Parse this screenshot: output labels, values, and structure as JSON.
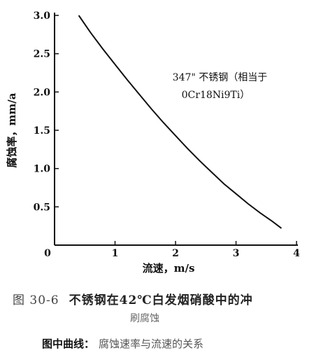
{
  "chart_data": {
    "type": "line",
    "title": "",
    "xlabel": "流速，m/s",
    "ylabel": "腐蚀率，mm/a",
    "xlim": [
      0,
      4
    ],
    "ylim": [
      0,
      3.0
    ],
    "x_ticks": [
      "0",
      "1",
      "2",
      "3",
      "4"
    ],
    "y_ticks": [
      "0",
      "0.5",
      "1.0",
      "1.5",
      "2.0",
      "2.5",
      "3.0"
    ],
    "grid": false,
    "series": [
      {
        "name": "347\" 不锈钢（相当于 0Cr18Ni9Ti）",
        "x": [
          0.4,
          0.6,
          0.8,
          1.0,
          1.2,
          1.4,
          1.6,
          1.8,
          2.0,
          2.2,
          2.4,
          2.6,
          2.8,
          3.0,
          3.2,
          3.4,
          3.6,
          3.75
        ],
        "y": [
          3.0,
          2.77,
          2.56,
          2.36,
          2.16,
          1.97,
          1.78,
          1.6,
          1.43,
          1.26,
          1.1,
          0.95,
          0.8,
          0.67,
          0.54,
          0.42,
          0.31,
          0.22
        ]
      }
    ],
    "annotation_line1": "347\" 不锈钢（相当于",
    "annotation_line2": "0Cr18Ni9Ti）"
  },
  "caption": {
    "figure_number": "图 30-6",
    "title_line1": "不锈钢在42℃白发烟硝酸中的冲",
    "title_line2": "刷腐蚀"
  },
  "note": {
    "label": "图中曲线：",
    "text": "腐蚀速率与流速的关系"
  }
}
